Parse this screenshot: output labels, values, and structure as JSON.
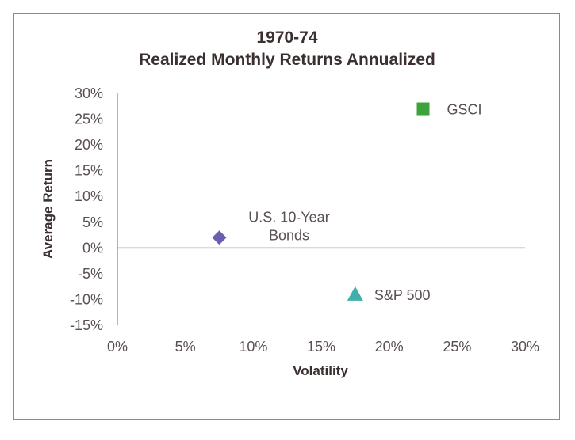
{
  "chart_data": {
    "type": "scatter",
    "title_line1": "1970-74",
    "title_line2": "Realized Monthly Returns Annualized",
    "xlabel": "Volatility",
    "ylabel": "Average Return",
    "xlim": [
      0,
      30
    ],
    "ylim": [
      -15,
      30
    ],
    "x_ticks": [
      0,
      5,
      10,
      15,
      20,
      25,
      30
    ],
    "x_tick_labels": [
      "0%",
      "5%",
      "10%",
      "15%",
      "20%",
      "25%",
      "30%"
    ],
    "y_ticks": [
      30,
      25,
      20,
      15,
      10,
      5,
      0,
      -5,
      -10,
      -15
    ],
    "y_tick_labels": [
      "30%",
      "25%",
      "20%",
      "15%",
      "10%",
      "5%",
      "0%",
      "-5%",
      "-10%",
      "-15%"
    ],
    "grid": false,
    "points": [
      {
        "name": "GSCI",
        "label_lines": [
          "GSCI"
        ],
        "x": 22.5,
        "y": 27,
        "marker": "square",
        "color": "#3ea33a"
      },
      {
        "name": "U.S. 10-Year Bonds",
        "label_lines": [
          "U.S. 10-Year",
          "Bonds"
        ],
        "x": 7.5,
        "y": 2,
        "marker": "diamond",
        "color": "#6a5eb0"
      },
      {
        "name": "S&P 500",
        "label_lines": [
          "S&P 500"
        ],
        "x": 17.5,
        "y": -9,
        "marker": "triangle",
        "color": "#3fb0ab"
      }
    ]
  }
}
